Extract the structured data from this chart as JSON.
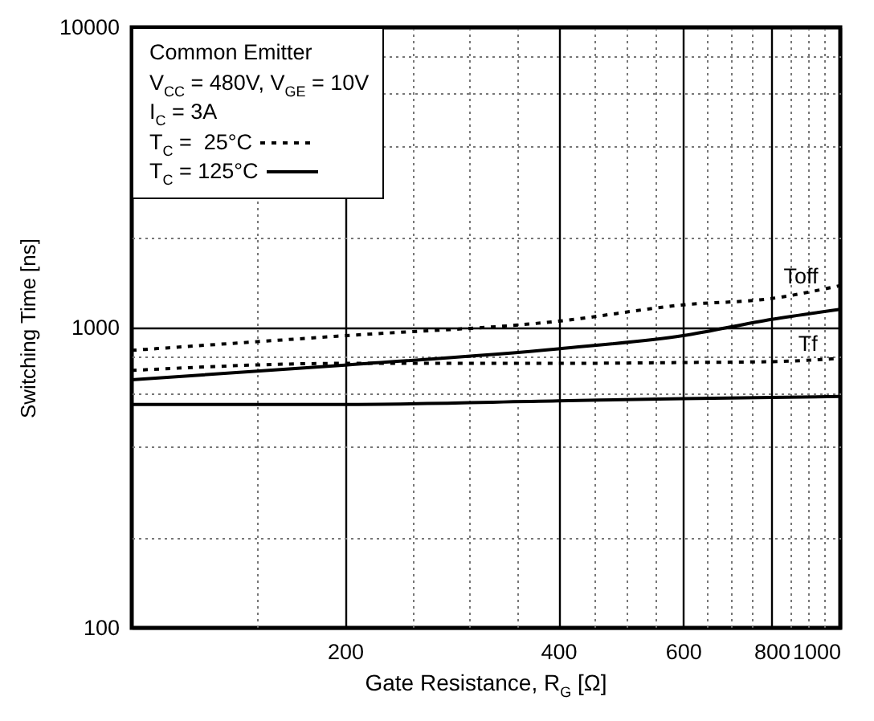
{
  "chart_data": {
    "type": "line",
    "xlabel": "Gate Resistance, R$_{G}$ [Ω]",
    "ylabel": "Switching Time [ns]",
    "x": [
      100,
      200,
      400,
      600,
      800,
      1000
    ],
    "series": [
      {
        "name": "T$_{C}$ =  25°C",
        "color": "#000000",
        "line_style": "dashed",
        "values": [
          840,
          940,
          1050,
          1190,
          1250,
          1380
        ]
      },
      {
        "name": "T$_{C}$ = 125°C",
        "color": "#000000",
        "line_style": "solid",
        "values": [
          670,
          750,
          850,
          940,
          1065,
          1150
        ]
      },
      {
        "color": "#000000",
        "line_style": "dashed",
        "values": [
          720,
          760,
          760,
          765,
          770,
          790
        ]
      },
      {
        "color": "#000000",
        "line_style": "solid",
        "values": [
          555,
          555,
          570,
          580,
          585,
          590
        ]
      }
    ],
    "log": "xy",
    "xlim": [
      100,
      1000
    ],
    "ylim": [
      100,
      10000
    ],
    "xticks": [
      {
        "value": 150,
        "label": null
      },
      200,
      {
        "value": 250,
        "label": null
      },
      {
        "value": 300,
        "label": null
      },
      {
        "value": 350,
        "label": null
      },
      400,
      {
        "value": 450,
        "label": null
      },
      {
        "value": 500,
        "label": null
      },
      {
        "value": 550,
        "label": null
      },
      600,
      {
        "value": 650,
        "label": null
      },
      {
        "value": 700,
        "label": null
      },
      {
        "value": 750,
        "label": null
      },
      800,
      {
        "value": 850,
        "label": null
      },
      {
        "value": 900,
        "label": null
      },
      {
        "value": 950,
        "label": null
      },
      1000
    ],
    "yticks": [
      100,
      {
        "value": 200,
        "label": null
      },
      {
        "value": 400,
        "label": null
      },
      {
        "value": 600,
        "label": null
      },
      {
        "value": 800,
        "label": null
      },
      1000,
      {
        "value": 2000,
        "label": null
      },
      {
        "value": 4000,
        "label": null
      },
      {
        "value": 6000,
        "label": null
      },
      {
        "value": 8000,
        "label": null
      },
      10000
    ],
    "grid": true,
    "legend": "top left",
    "marker": "none",
    "annotations": [
      "Common Emitter",
      "V$_{CC}$ = 480V, V$_{GE}$ = 10V",
      "I$_{C}$ = 3A",
      {
        "text": "Toff",
        "x": 880,
        "y": 1300
      },
      {
        "text": "Tf",
        "x": 900,
        "y": 775
      }
    ]
  }
}
